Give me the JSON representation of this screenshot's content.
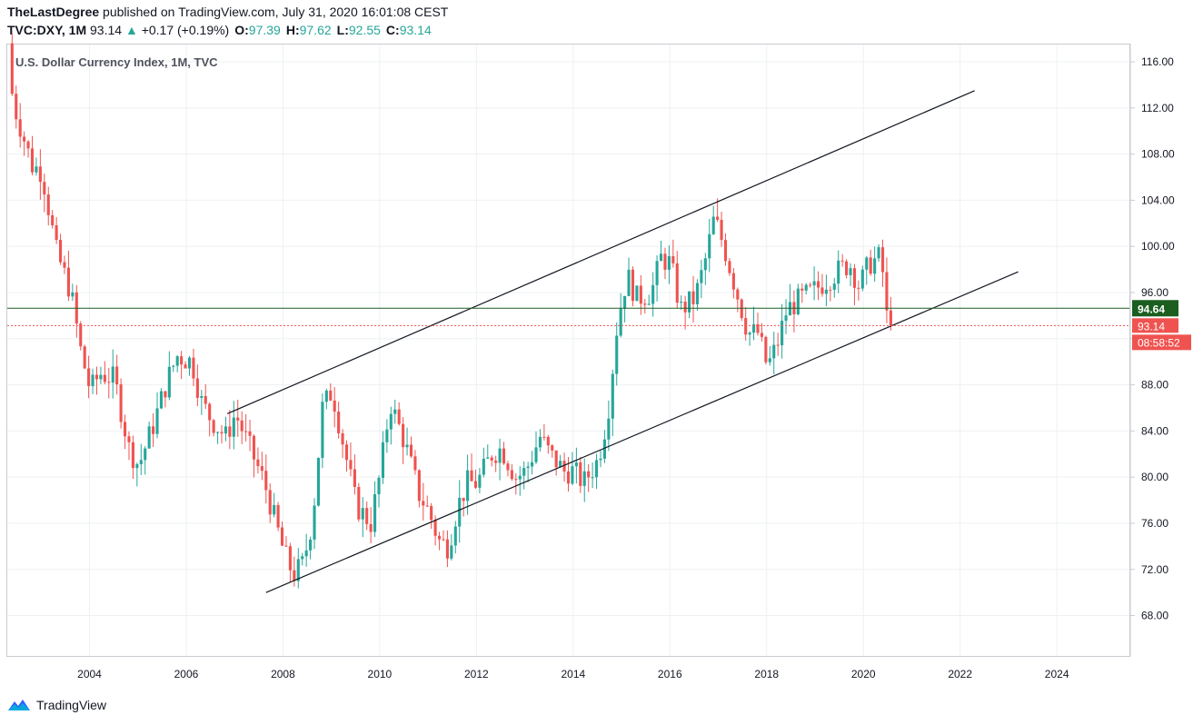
{
  "header": {
    "author": "TheLastDegree",
    "published_text": " published on TradingView.com, July 31, 2020 16:01:08 CEST",
    "symbol": "TVC:DXY, 1M",
    "last": "93.14",
    "change": "+0.17 (+0.19%)",
    "open_label": "O:",
    "open": "97.39",
    "high_label": "H:",
    "high": "97.62",
    "low_label": "L:",
    "low": "92.55",
    "close_label": "C:",
    "close": "93.14"
  },
  "chart_title": "U.S. Dollar Currency Index, 1M, TVC",
  "footer": {
    "brand": "TradingView"
  },
  "colors": {
    "up": "#26a69a",
    "down": "#ef5350",
    "grid": "#eef0f3",
    "hline": "#1b5e20",
    "price": "#ef5350"
  },
  "chart_data": {
    "type": "candlestick",
    "title": "U.S. Dollar Currency Index, 1M, TVC",
    "x_range": [
      2002.3,
      2025.5
    ],
    "y_range": [
      64.5,
      117.5
    ],
    "x_ticks": [
      "2004",
      "2006",
      "2008",
      "2010",
      "2012",
      "2014",
      "2016",
      "2018",
      "2020",
      "2022",
      "2024"
    ],
    "y_ticks": [
      "116.00",
      "112.00",
      "108.00",
      "104.00",
      "100.00",
      "96.00",
      "92.00",
      "88.00",
      "84.00",
      "80.00",
      "76.00",
      "72.00",
      "68.00"
    ],
    "series_path": [
      [
        2002.4,
        117.0
      ],
      [
        2002.5,
        112.5
      ],
      [
        2002.9,
        107.0
      ],
      [
        2003.1,
        106.5
      ],
      [
        2003.4,
        99.5
      ],
      [
        2003.7,
        96.0
      ],
      [
        2003.9,
        91.0
      ],
      [
        2004.1,
        87.5
      ],
      [
        2004.3,
        89.0
      ],
      [
        2004.6,
        88.5
      ],
      [
        2004.9,
        82.5
      ],
      [
        2005.1,
        81.0
      ],
      [
        2005.4,
        84.5
      ],
      [
        2005.7,
        88.5
      ],
      [
        2005.9,
        90.5
      ],
      [
        2006.2,
        90.0
      ],
      [
        2006.4,
        86.5
      ],
      [
        2006.6,
        85.0
      ],
      [
        2006.9,
        83.5
      ],
      [
        2007.1,
        85.5
      ],
      [
        2007.4,
        82.5
      ],
      [
        2007.7,
        79.5
      ],
      [
        2007.9,
        76.5
      ],
      [
        2008.1,
        73.5
      ],
      [
        2008.3,
        71.5
      ],
      [
        2008.5,
        72.5
      ],
      [
        2008.7,
        76.5
      ],
      [
        2008.9,
        86.0
      ],
      [
        2009.1,
        87.5
      ],
      [
        2009.3,
        83.5
      ],
      [
        2009.6,
        77.5
      ],
      [
        2009.9,
        76.0
      ],
      [
        2010.1,
        80.5
      ],
      [
        2010.3,
        86.5
      ],
      [
        2010.6,
        83.0
      ],
      [
        2010.9,
        78.5
      ],
      [
        2011.1,
        77.0
      ],
      [
        2011.3,
        74.5
      ],
      [
        2011.5,
        74.0
      ],
      [
        2011.7,
        77.5
      ],
      [
        2011.9,
        79.5
      ],
      [
        2012.1,
        79.5
      ],
      [
        2012.4,
        82.0
      ],
      [
        2012.6,
        82.5
      ],
      [
        2012.9,
        80.0
      ],
      [
        2013.1,
        80.5
      ],
      [
        2013.4,
        83.5
      ],
      [
        2013.6,
        82.0
      ],
      [
        2013.9,
        80.5
      ],
      [
        2014.1,
        80.5
      ],
      [
        2014.3,
        79.5
      ],
      [
        2014.6,
        81.5
      ],
      [
        2014.8,
        85.5
      ],
      [
        2015.0,
        93.5
      ],
      [
        2015.2,
        97.5
      ],
      [
        2015.4,
        95.5
      ],
      [
        2015.7,
        96.0
      ],
      [
        2015.9,
        99.0
      ],
      [
        2016.1,
        98.5
      ],
      [
        2016.3,
        94.5
      ],
      [
        2016.6,
        95.5
      ],
      [
        2016.8,
        98.5
      ],
      [
        2017.0,
        102.5
      ],
      [
        2017.2,
        100.0
      ],
      [
        2017.5,
        95.5
      ],
      [
        2017.7,
        92.5
      ],
      [
        2017.9,
        92.5
      ],
      [
        2018.1,
        89.5
      ],
      [
        2018.3,
        91.5
      ],
      [
        2018.5,
        94.5
      ],
      [
        2018.8,
        95.5
      ],
      [
        2019.0,
        96.0
      ],
      [
        2019.3,
        97.0
      ],
      [
        2019.6,
        98.0
      ],
      [
        2019.8,
        98.5
      ],
      [
        2020.0,
        96.5
      ],
      [
        2020.2,
        98.5
      ],
      [
        2020.4,
        99.0
      ],
      [
        2020.5,
        97.5
      ],
      [
        2020.58,
        93.14
      ]
    ],
    "trendlines": [
      {
        "from": [
          2006.85,
          85.5
        ],
        "to": [
          2022.3,
          113.5
        ]
      },
      {
        "from": [
          2007.65,
          70.0
        ],
        "to": [
          2023.2,
          97.8
        ]
      }
    ],
    "horizontal_lines": [
      {
        "value": 94.64,
        "label": "94.64"
      }
    ],
    "last_price": {
      "value": 93.14,
      "label": "93.14",
      "countdown": "08:58:52"
    }
  }
}
